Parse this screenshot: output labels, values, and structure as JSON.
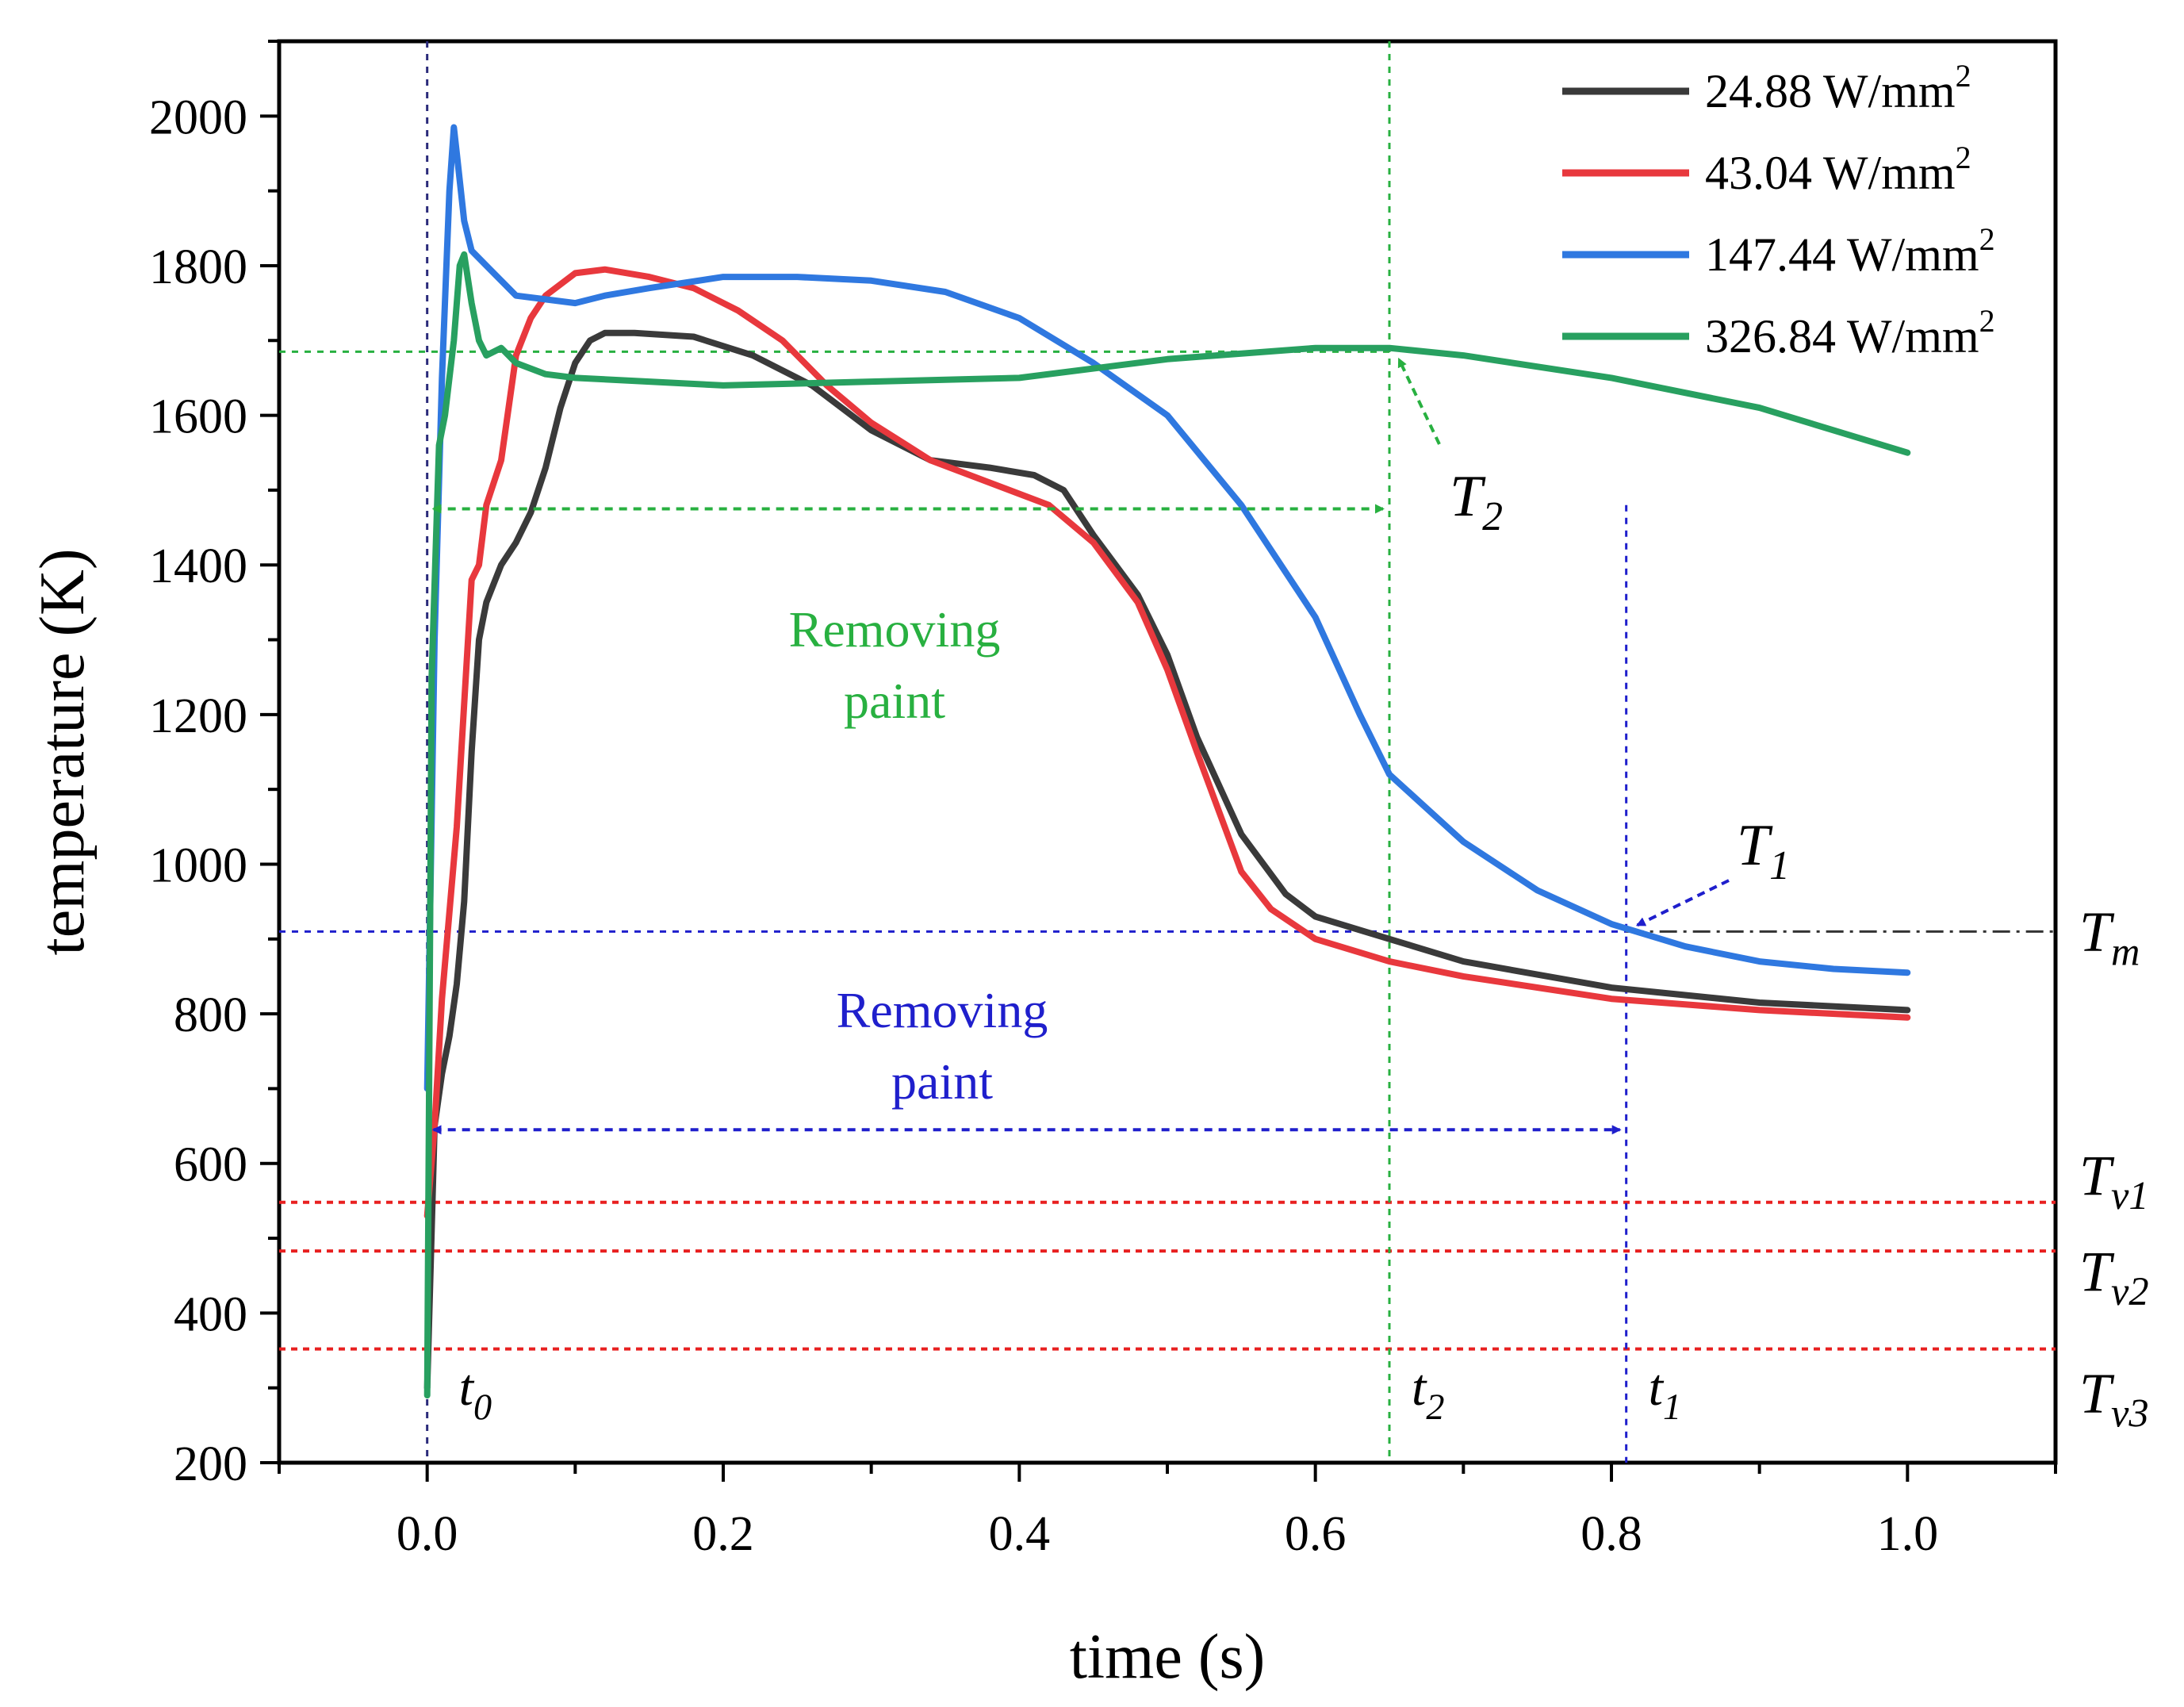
{
  "chart_data": {
    "type": "line",
    "xlabel": "time (s)",
    "ylabel": "temperature (K)",
    "xlim": [
      -0.1,
      1.1
    ],
    "ylim": [
      200,
      2100
    ],
    "xticks": [
      0.0,
      0.2,
      0.4,
      0.6,
      0.8,
      1.0
    ],
    "xtick_labels": [
      "0.0",
      "0.2",
      "0.4",
      "0.6",
      "0.8",
      "1.0"
    ],
    "yticks": [
      200,
      400,
      600,
      800,
      1000,
      1200,
      1400,
      1600,
      1800,
      2000
    ],
    "ytick_labels": [
      "200",
      "400",
      "600",
      "800",
      "1000",
      "1200",
      "1400",
      "1600",
      "1800",
      "2000"
    ],
    "legend_position": "top-right",
    "series": [
      {
        "name": "24.88 W/mm",
        "sup": "2",
        "color": "#3a3a3a",
        "x": [
          0.0,
          0.005,
          0.01,
          0.015,
          0.02,
          0.025,
          0.03,
          0.035,
          0.04,
          0.05,
          0.06,
          0.07,
          0.08,
          0.09,
          0.1,
          0.11,
          0.12,
          0.14,
          0.18,
          0.22,
          0.26,
          0.3,
          0.34,
          0.38,
          0.41,
          0.43,
          0.45,
          0.48,
          0.5,
          0.52,
          0.55,
          0.58,
          0.6,
          0.65,
          0.7,
          0.8,
          0.9,
          1.0
        ],
        "y": [
          300,
          650,
          720,
          770,
          840,
          950,
          1150,
          1300,
          1350,
          1400,
          1430,
          1470,
          1530,
          1610,
          1670,
          1700,
          1710,
          1710,
          1705,
          1680,
          1640,
          1580,
          1540,
          1530,
          1520,
          1500,
          1440,
          1360,
          1280,
          1170,
          1040,
          960,
          930,
          900,
          870,
          835,
          815,
          805
        ]
      },
      {
        "name": "43.04 W/mm",
        "sup": "2",
        "color": "#e8383d",
        "x": [
          0.0,
          0.005,
          0.01,
          0.02,
          0.03,
          0.035,
          0.04,
          0.05,
          0.06,
          0.07,
          0.08,
          0.1,
          0.12,
          0.15,
          0.18,
          0.21,
          0.24,
          0.27,
          0.3,
          0.34,
          0.38,
          0.42,
          0.45,
          0.48,
          0.5,
          0.52,
          0.55,
          0.57,
          0.6,
          0.65,
          0.7,
          0.8,
          0.9,
          1.0
        ],
        "y": [
          530,
          650,
          820,
          1050,
          1380,
          1400,
          1480,
          1540,
          1680,
          1730,
          1760,
          1790,
          1795,
          1785,
          1770,
          1740,
          1700,
          1640,
          1590,
          1540,
          1510,
          1480,
          1430,
          1350,
          1260,
          1150,
          990,
          940,
          900,
          870,
          850,
          820,
          805,
          795
        ]
      },
      {
        "name": "147.44 W/mm",
        "sup": "2",
        "color": "#2f78e0",
        "x": [
          0.0,
          0.005,
          0.01,
          0.015,
          0.018,
          0.02,
          0.025,
          0.03,
          0.04,
          0.05,
          0.06,
          0.08,
          0.1,
          0.12,
          0.15,
          0.2,
          0.25,
          0.3,
          0.35,
          0.4,
          0.45,
          0.5,
          0.55,
          0.6,
          0.63,
          0.65,
          0.7,
          0.75,
          0.8,
          0.85,
          0.9,
          0.95,
          1.0
        ],
        "y": [
          700,
          1300,
          1650,
          1900,
          1985,
          1950,
          1860,
          1820,
          1800,
          1780,
          1760,
          1755,
          1750,
          1760,
          1770,
          1785,
          1785,
          1780,
          1765,
          1730,
          1670,
          1600,
          1480,
          1330,
          1200,
          1120,
          1030,
          965,
          920,
          890,
          870,
          860,
          855
        ]
      },
      {
        "name": "326.84 W/mm",
        "sup": "2",
        "color": "#28a060",
        "x": [
          0.0,
          0.003,
          0.008,
          0.012,
          0.018,
          0.022,
          0.025,
          0.03,
          0.035,
          0.04,
          0.05,
          0.06,
          0.08,
          0.1,
          0.15,
          0.2,
          0.3,
          0.4,
          0.5,
          0.6,
          0.65,
          0.7,
          0.8,
          0.9,
          1.0
        ],
        "y": [
          290,
          1250,
          1560,
          1600,
          1700,
          1800,
          1815,
          1750,
          1700,
          1680,
          1690,
          1670,
          1655,
          1650,
          1645,
          1640,
          1645,
          1650,
          1675,
          1690,
          1690,
          1680,
          1650,
          1610,
          1550
        ]
      }
    ],
    "reference_lines": [
      {
        "label": "T",
        "sub": "m",
        "value": 910,
        "color": "#1f1fcc",
        "ext_color": "#333333"
      },
      {
        "label": "T",
        "sub": "v1",
        "value": 548,
        "color": "#e82020"
      },
      {
        "label": "T",
        "sub": "v2",
        "value": 483,
        "color": "#e82020"
      },
      {
        "label": "T",
        "sub": "v3",
        "value": 352,
        "color": "#e82020"
      }
    ],
    "green_hline": 1685,
    "vertical_lines": [
      {
        "label": "t",
        "sub": "0",
        "x": 0.0,
        "color": "#2a2a7a"
      },
      {
        "label": "t",
        "sub": "2",
        "x": 0.65,
        "color": "#28b040"
      },
      {
        "label": "t",
        "sub": "1",
        "x": 0.81,
        "color": "#1f1fcc"
      }
    ],
    "annotations": {
      "T2": {
        "label": "T",
        "sub": "2",
        "point": [
          0.65,
          1690
        ]
      },
      "T1": {
        "label": "T",
        "sub": "1",
        "point": [
          0.81,
          910
        ]
      },
      "green_arrow": {
        "x1": 0.0,
        "x2": 0.65,
        "y": 1475
      },
      "blue_arrow": {
        "x1": 0.0,
        "x2": 0.81,
        "y": 645
      },
      "green_region_text": [
        "Removing",
        "paint"
      ],
      "blue_region_text": [
        "Removing",
        "paint"
      ]
    }
  }
}
